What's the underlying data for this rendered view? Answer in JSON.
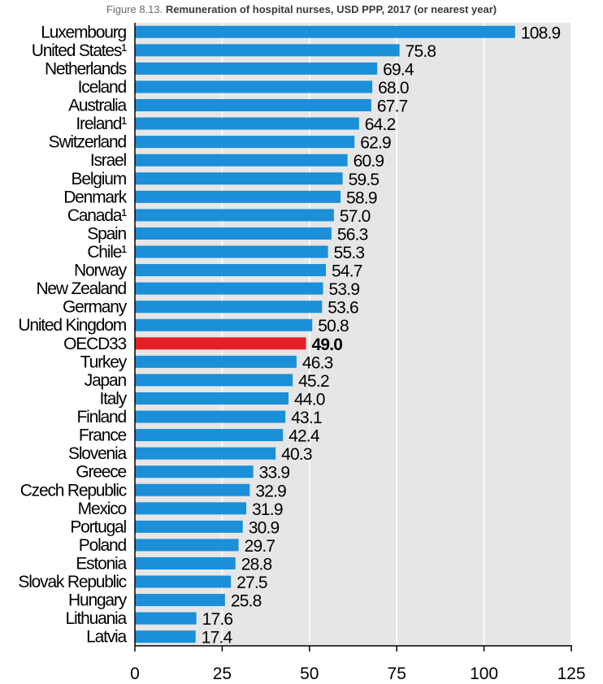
{
  "figure": {
    "prefix": "Figure 8.13.",
    "title": "Remuneration of hospital nurses, USD PPP, 2017 (or nearest year)"
  },
  "colors": {
    "bar": "#1b8fd8",
    "highlight": "#e41f26",
    "plot_background": "#e6e6e6",
    "grid": "#ffffff",
    "text": "#000000"
  },
  "chart_data": {
    "type": "bar",
    "orientation": "horizontal",
    "title": "Remuneration of hospital nurses, USD PPP, 2017 (or nearest year)",
    "xlabel": "",
    "ylabel": "",
    "xlim": [
      0,
      125
    ],
    "x_ticks": [
      "0",
      "25",
      "50",
      "75",
      "100",
      "125"
    ],
    "grid": true,
    "highlight": "OECD33",
    "categories": [
      "Luxembourg",
      "United States¹",
      "Netherlands",
      "Iceland",
      "Australia",
      "Ireland¹",
      "Switzerland",
      "Israel",
      "Belgium",
      "Denmark",
      "Canada¹",
      "Spain",
      "Chile¹",
      "Norway",
      "New Zealand",
      "Germany",
      "United Kingdom",
      "OECD33",
      "Turkey",
      "Japan",
      "Italy",
      "Finland",
      "France",
      "Slovenia",
      "Greece",
      "Czech Republic",
      "Mexico",
      "Portugal",
      "Poland",
      "Estonia",
      "Slovak Republic",
      "Hungary",
      "Lithuania",
      "Latvia"
    ],
    "values": [
      108.9,
      75.8,
      69.4,
      68.0,
      67.7,
      64.2,
      62.9,
      60.9,
      59.5,
      58.9,
      57.0,
      56.3,
      55.3,
      54.7,
      53.9,
      53.6,
      50.8,
      49.0,
      46.3,
      45.2,
      44.0,
      43.1,
      42.4,
      40.3,
      33.9,
      32.9,
      31.9,
      30.9,
      29.7,
      28.8,
      27.5,
      25.8,
      17.6,
      17.4
    ],
    "value_labels": [
      "108.9",
      "75.8",
      "69.4",
      "68.0",
      "67.7",
      "64.2",
      "62.9",
      "60.9",
      "59.5",
      "58.9",
      "57.0",
      "56.3",
      "55.3",
      "54.7",
      "53.9",
      "53.6",
      "50.8",
      "49.0",
      "46.3",
      "45.2",
      "44.0",
      "43.1",
      "42.4",
      "40.3",
      "33.9",
      "32.9",
      "31.9",
      "30.9",
      "29.7",
      "28.8",
      "27.5",
      "25.8",
      "17.6",
      "17.4"
    ]
  }
}
